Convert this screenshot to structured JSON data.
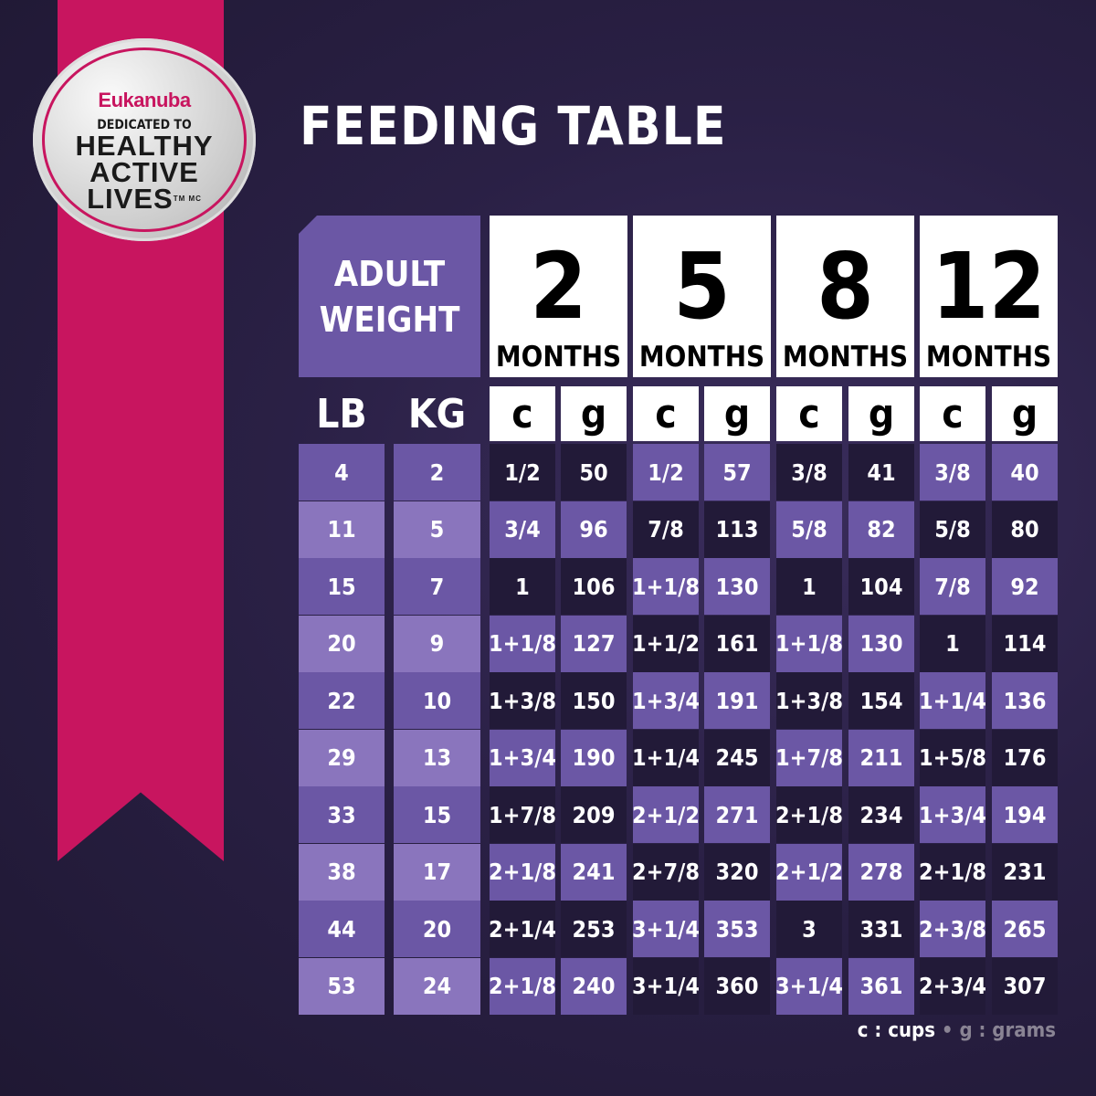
{
  "badge": {
    "brand": "Eukanuba",
    "line1": "DEDICATED TO",
    "line2": "HEALTHY",
    "line3": "ACTIVE",
    "line4": "LIVES",
    "tm": "TM MC"
  },
  "title": "FEEDING TABLE",
  "adult_weight": {
    "line1": "ADULT",
    "line2": "WEIGHT"
  },
  "months": [
    {
      "n": "2",
      "label": "MONTHS"
    },
    {
      "n": "5",
      "label": "MONTHS"
    },
    {
      "n": "8",
      "label": "MONTHS"
    },
    {
      "n": "12",
      "label": "MONTHS"
    }
  ],
  "units": {
    "lb": "LB",
    "kg": "KG",
    "c": "c",
    "g": "g"
  },
  "colors": {
    "background": "#231a3a",
    "ribbon": "#c8155f",
    "dark_cell": "#221a38",
    "purple_cell": "#6b57a5",
    "weight_cell": "#6b57a5",
    "weight_cell_alt": "#8a75bd"
  },
  "rows": [
    {
      "lb": "4",
      "kg": "2",
      "v": [
        "1/2",
        "50",
        "1/2",
        "57",
        "3/8",
        "41",
        "3/8",
        "40"
      ]
    },
    {
      "lb": "11",
      "kg": "5",
      "v": [
        "3/4",
        "96",
        "7/8",
        "113",
        "5/8",
        "82",
        "5/8",
        "80"
      ]
    },
    {
      "lb": "15",
      "kg": "7",
      "v": [
        "1",
        "106",
        "1+1/8",
        "130",
        "1",
        "104",
        "7/8",
        "92"
      ]
    },
    {
      "lb": "20",
      "kg": "9",
      "v": [
        "1+1/8",
        "127",
        "1+1/2",
        "161",
        "1+1/8",
        "130",
        "1",
        "114"
      ]
    },
    {
      "lb": "22",
      "kg": "10",
      "v": [
        "1+3/8",
        "150",
        "1+3/4",
        "191",
        "1+3/8",
        "154",
        "1+1/4",
        "136"
      ]
    },
    {
      "lb": "29",
      "kg": "13",
      "v": [
        "1+3/4",
        "190",
        "1+1/4",
        "245",
        "1+7/8",
        "211",
        "1+5/8",
        "176"
      ]
    },
    {
      "lb": "33",
      "kg": "15",
      "v": [
        "1+7/8",
        "209",
        "2+1/2",
        "271",
        "2+1/8",
        "234",
        "1+3/4",
        "194"
      ]
    },
    {
      "lb": "38",
      "kg": "17",
      "v": [
        "2+1/8",
        "241",
        "2+7/8",
        "320",
        "2+1/2",
        "278",
        "2+1/8",
        "231"
      ]
    },
    {
      "lb": "44",
      "kg": "20",
      "v": [
        "2+1/4",
        "253",
        "3+1/4",
        "353",
        "3",
        "331",
        "2+3/8",
        "265"
      ]
    },
    {
      "lb": "53",
      "kg": "24",
      "v": [
        "2+1/8",
        "240",
        "3+1/4",
        "360",
        "3+1/4",
        "361",
        "2+3/4",
        "307"
      ]
    }
  ],
  "legend": {
    "cups": "c : cups",
    "sep": "•",
    "grams": "g : grams"
  }
}
